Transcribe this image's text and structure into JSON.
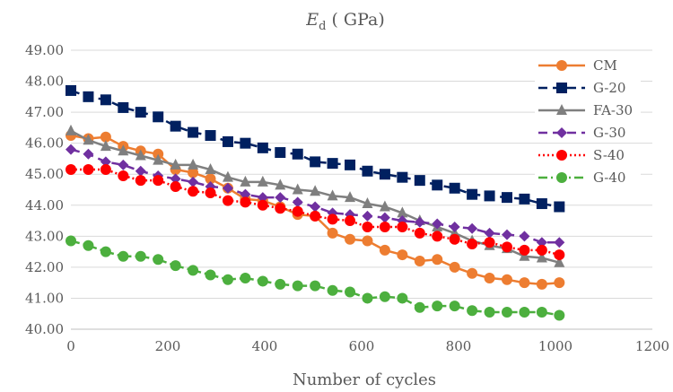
{
  "chart_data": {
    "type": "line",
    "title": "E_d ( GPa)",
    "title_main": "E",
    "title_sub": "d",
    "title_rest": " ( GPa)",
    "xlabel": "Number of cycles",
    "ylabel": "",
    "xlim": [
      0,
      1200
    ],
    "ylim": [
      40,
      49
    ],
    "x_ticks": [
      0,
      200,
      400,
      600,
      800,
      1000,
      1200
    ],
    "x_tick_labels": [
      "0",
      "200",
      "400",
      "600",
      "800",
      "1000",
      "1200"
    ],
    "y_ticks": [
      40,
      41,
      42,
      43,
      44,
      45,
      46,
      47,
      48,
      49
    ],
    "y_tick_labels": [
      "40.00",
      "41.00",
      "42.00",
      "43.00",
      "44.00",
      "45.00",
      "46.00",
      "47.00",
      "48.00",
      "49.00"
    ],
    "grid": "horizontal",
    "legend_position": "top-right",
    "x": [
      0,
      36,
      72,
      108,
      144,
      180,
      216,
      252,
      288,
      324,
      360,
      396,
      432,
      468,
      504,
      540,
      576,
      612,
      648,
      684,
      720,
      756,
      792,
      828,
      864,
      900,
      936,
      972,
      1008
    ],
    "series": [
      {
        "name": "CM",
        "color": "#ED7D31",
        "marker": "circle",
        "line": "solid",
        "values": [
          46.25,
          46.15,
          46.2,
          45.9,
          45.75,
          45.65,
          45.15,
          45.05,
          44.85,
          44.55,
          44.2,
          44.15,
          43.95,
          43.7,
          43.65,
          43.1,
          42.9,
          42.85,
          42.55,
          42.4,
          42.2,
          42.25,
          42.0,
          41.8,
          41.65,
          41.6,
          41.5,
          41.45,
          41.5
        ]
      },
      {
        "name": "G-20",
        "color": "#002060",
        "marker": "square",
        "line": "dash",
        "values": [
          47.7,
          47.5,
          47.4,
          47.15,
          47.0,
          46.85,
          46.55,
          46.35,
          46.25,
          46.05,
          46.0,
          45.85,
          45.7,
          45.65,
          45.4,
          45.35,
          45.3,
          45.1,
          45.0,
          44.9,
          44.8,
          44.65,
          44.55,
          44.35,
          44.3,
          44.25,
          44.2,
          44.05,
          43.95
        ]
      },
      {
        "name": "FA-30",
        "color": "#7F7F7F",
        "marker": "triangle",
        "line": "solid",
        "values": [
          46.4,
          46.1,
          45.9,
          45.75,
          45.6,
          45.45,
          45.3,
          45.3,
          45.15,
          44.9,
          44.75,
          44.75,
          44.65,
          44.5,
          44.45,
          44.3,
          44.25,
          44.05,
          43.95,
          43.75,
          43.5,
          43.3,
          43.1,
          42.85,
          42.7,
          42.6,
          42.35,
          42.3,
          42.15
        ]
      },
      {
        "name": "G-30",
        "color": "#7030A0",
        "marker": "diamond",
        "line": "dash",
        "values": [
          45.8,
          45.65,
          45.4,
          45.3,
          45.1,
          44.95,
          44.85,
          44.75,
          44.6,
          44.55,
          44.35,
          44.25,
          44.25,
          44.1,
          43.95,
          43.75,
          43.7,
          43.65,
          43.6,
          43.5,
          43.45,
          43.4,
          43.3,
          43.25,
          43.1,
          43.05,
          43.0,
          42.8,
          42.8
        ]
      },
      {
        "name": "S-40",
        "color": "#FF0000",
        "marker": "circle",
        "line": "dot",
        "values": [
          45.15,
          45.15,
          45.15,
          44.95,
          44.8,
          44.8,
          44.6,
          44.45,
          44.4,
          44.15,
          44.1,
          44.0,
          43.9,
          43.8,
          43.65,
          43.55,
          43.5,
          43.3,
          43.3,
          43.3,
          43.1,
          43.0,
          42.9,
          42.75,
          42.8,
          42.65,
          42.55,
          42.55,
          42.4
        ]
      },
      {
        "name": "G-40",
        "color": "#4CAF3E",
        "marker": "circle",
        "line": "dashdot",
        "values": [
          42.85,
          42.7,
          42.5,
          42.35,
          42.35,
          42.25,
          42.05,
          41.9,
          41.75,
          41.6,
          41.65,
          41.55,
          41.45,
          41.4,
          41.4,
          41.25,
          41.2,
          41.0,
          41.05,
          41.0,
          40.7,
          40.75,
          40.75,
          40.6,
          40.55,
          40.55,
          40.55,
          40.55,
          40.45
        ]
      }
    ]
  }
}
